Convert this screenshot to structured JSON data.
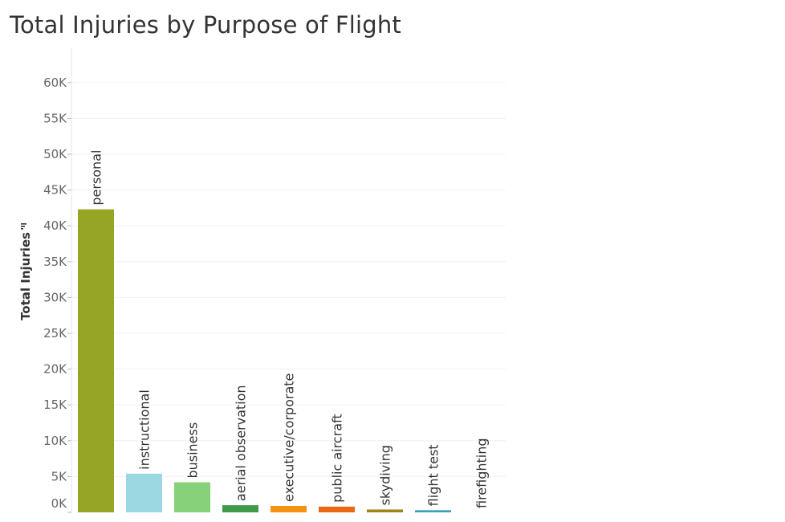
{
  "chart_data": {
    "type": "bar",
    "title": "Total Injuries by Purpose of Flight",
    "ylabel": "Total Injuries",
    "xlabel": "",
    "categories": [
      "personal",
      "instructional",
      "business",
      "aerial observation",
      "executive/corporate",
      "public aircraft",
      "skydiving",
      "flight test",
      "firefighting"
    ],
    "values": [
      42300,
      5400,
      4200,
      1000,
      900,
      800,
      400,
      300,
      0
    ],
    "colors": [
      "#97a527",
      "#9ad9e2",
      "#86d179",
      "#3e9a4a",
      "#f59114",
      "#e86a14",
      "#a18416",
      "#3f9fb5",
      "#c8c8c8"
    ],
    "yticks": [
      0,
      5000,
      10000,
      15000,
      20000,
      25000,
      30000,
      35000,
      40000,
      45000,
      50000,
      55000,
      60000
    ],
    "ytick_labels": [
      "0K",
      "5K",
      "10K",
      "15K",
      "20K",
      "25K",
      "30K",
      "35K",
      "40K",
      "45K",
      "50K",
      "55K",
      "60K"
    ],
    "ylim": [
      0,
      60000
    ],
    "grid": true,
    "sort_icon": "sort-descending-icon"
  }
}
